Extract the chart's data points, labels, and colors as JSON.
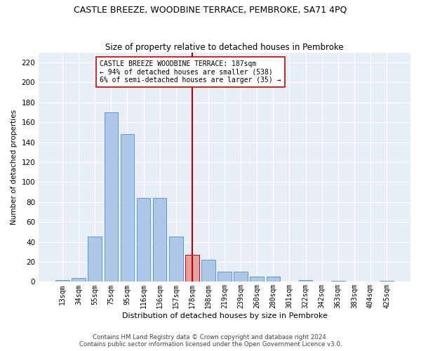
{
  "title": "CASTLE BREEZE, WOODBINE TERRACE, PEMBROKE, SA71 4PQ",
  "subtitle": "Size of property relative to detached houses in Pembroke",
  "xlabel": "Distribution of detached houses by size in Pembroke",
  "ylabel": "Number of detached properties",
  "footer_line1": "Contains HM Land Registry data © Crown copyright and database right 2024.",
  "footer_line2": "Contains public sector information licensed under the Open Government Licence v3.0.",
  "annotation_line1": "CASTLE BREEZE WOODBINE TERRACE: 187sqm",
  "annotation_line2": "← 94% of detached houses are smaller (538)",
  "annotation_line3": "6% of semi-detached houses are larger (35) →",
  "bar_labels": [
    "13sqm",
    "34sqm",
    "55sqm",
    "75sqm",
    "95sqm",
    "116sqm",
    "136sqm",
    "157sqm",
    "178sqm",
    "198sqm",
    "219sqm",
    "239sqm",
    "260sqm",
    "280sqm",
    "301sqm",
    "322sqm",
    "342sqm",
    "363sqm",
    "383sqm",
    "404sqm",
    "425sqm"
  ],
  "bar_values": [
    2,
    4,
    45,
    170,
    148,
    84,
    84,
    45,
    27,
    22,
    10,
    10,
    5,
    5,
    0,
    2,
    0,
    1,
    0,
    0,
    1
  ],
  "bar_color": "#aec6e8",
  "bar_edge_color": "#5b9bd5",
  "highlight_bar_index": 8,
  "highlight_bar_color": "#e8a0a0",
  "highlight_bar_edge_color": "#c00000",
  "vline_x": 8,
  "vline_color": "#c00000",
  "ylim": [
    0,
    230
  ],
  "yticks": [
    0,
    20,
    40,
    60,
    80,
    100,
    120,
    140,
    160,
    180,
    200,
    220
  ],
  "bg_color": "#e8eef8",
  "grid_color": "#ffffff",
  "title_fontsize": 9,
  "subtitle_fontsize": 8.5,
  "annotation_fontsize": 7,
  "axis_fontsize": 7.5,
  "xlabel_fontsize": 8,
  "footer_fontsize": 6.2
}
